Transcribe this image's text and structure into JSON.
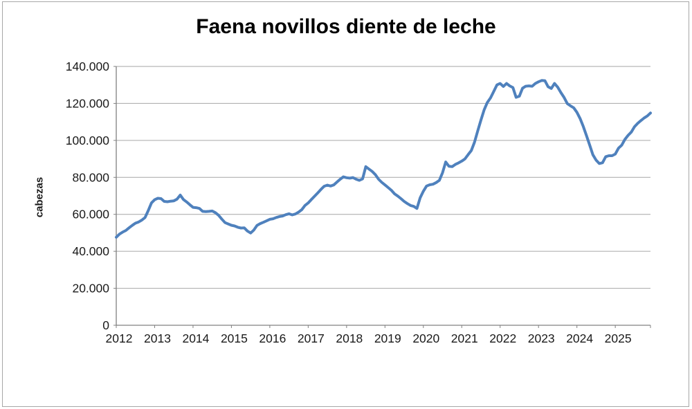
{
  "chart": {
    "title": "Faena novillos diente de leche",
    "y_axis_title": "cabezas"
  },
  "colors": {
    "line": "#4F81BD",
    "grid": "#A6A6A6",
    "axis": "#808080",
    "text": "#1A1A1A",
    "border": "#A6A6A6",
    "background": "#FFFFFF"
  },
  "chart_data": {
    "type": "line",
    "title": "Faena novillos diente de leche",
    "xlabel": "",
    "ylabel": "cabezas",
    "legend": "none",
    "grid": "horizontal",
    "ylim": [
      0,
      140000
    ],
    "y_ticks": [
      0,
      20000,
      40000,
      60000,
      80000,
      100000,
      120000,
      140000
    ],
    "y_tick_labels": [
      "0",
      "20.000",
      "40.000",
      "60.000",
      "80.000",
      "100.000",
      "120.000",
      "140.000"
    ],
    "x_tick_labels": [
      "2012",
      "2013",
      "2014",
      "2015",
      "2016",
      "2017",
      "2018",
      "2019",
      "2020",
      "2021",
      "2022",
      "2023",
      "2024",
      "2025"
    ],
    "x_unit": "month",
    "x_start": "2012-01",
    "x_end": "2025-12",
    "points_per_year": 12,
    "series": [
      {
        "name": "Faena novillos diente de leche",
        "color": "#4F81BD",
        "values": [
          47600,
          49300,
          50400,
          51300,
          52700,
          54000,
          55200,
          55900,
          56900,
          58300,
          62000,
          66200,
          67900,
          68700,
          68500,
          67000,
          66800,
          67100,
          67300,
          68200,
          70400,
          68000,
          66700,
          65200,
          63800,
          63600,
          63200,
          61600,
          61500,
          61600,
          61800,
          60900,
          59500,
          57400,
          55500,
          54800,
          54100,
          53700,
          53000,
          52600,
          52700,
          51000,
          49900,
          51500,
          54000,
          55000,
          55700,
          56500,
          57300,
          57600,
          58300,
          58800,
          59100,
          59800,
          60300,
          59700,
          60200,
          61200,
          62500,
          64800,
          66200,
          68000,
          69800,
          71600,
          73500,
          75200,
          75800,
          75300,
          75900,
          77500,
          79000,
          80300,
          79800,
          79600,
          79900,
          79000,
          78400,
          79200,
          85800,
          84500,
          83200,
          81500,
          79000,
          77300,
          75900,
          74500,
          73000,
          71100,
          69900,
          68500,
          67000,
          65800,
          64800,
          64300,
          63200,
          69000,
          72500,
          75300,
          76000,
          76300,
          77200,
          78400,
          82500,
          88300,
          86000,
          85800,
          87000,
          87800,
          88800,
          90000,
          92300,
          94500,
          99000,
          105200,
          111000,
          116500,
          120500,
          123000,
          126500,
          130000,
          130800,
          129200,
          130800,
          129500,
          128600,
          123300,
          123900,
          128200,
          129300,
          129500,
          129300,
          130800,
          131700,
          132400,
          132300,
          129000,
          128100,
          130800,
          128800,
          125800,
          123200,
          119900,
          118700,
          117600,
          115200,
          111800,
          107500,
          102600,
          97400,
          92200,
          89300,
          87500,
          87900,
          91200,
          91700,
          91700,
          92600,
          95800,
          97400,
          100500,
          102700,
          104500,
          107400,
          109200,
          110700,
          112100,
          113200,
          114800
        ]
      }
    ]
  }
}
